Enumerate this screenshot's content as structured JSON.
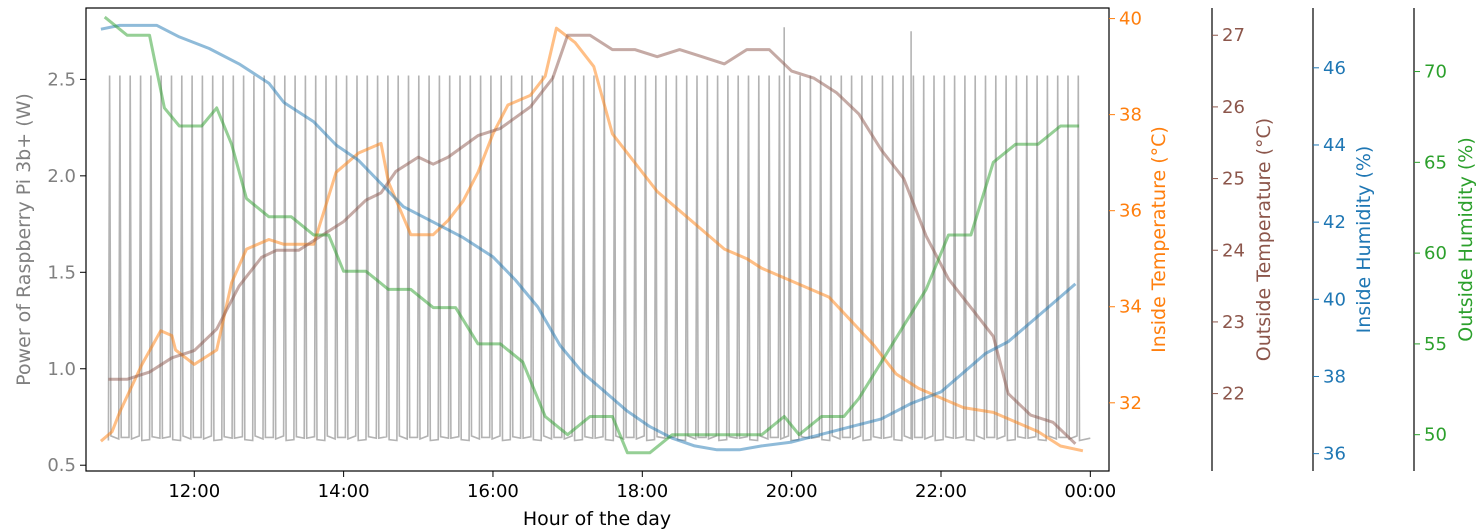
{
  "chart_data": {
    "type": "line",
    "xlabel": "Hour of the day",
    "x_ticks": [
      "12:00",
      "14:00",
      "16:00",
      "18:00",
      "20:00",
      "22:00",
      "00:00"
    ],
    "x_tick_hours": [
      12,
      14,
      16,
      18,
      20,
      22,
      24
    ],
    "xlim_hours": [
      10.55,
      24.25
    ],
    "grid": false,
    "legend": "none",
    "axes": [
      {
        "id": "power",
        "label": "Power of Raspberry Pi 3b+ (W)",
        "color": "#808080",
        "side": "left",
        "ylim": [
          0.47,
          2.87
        ],
        "ticks": [
          0.5,
          1.0,
          1.5,
          2.0,
          2.5
        ],
        "tick_labels": [
          "0.5",
          "1.0",
          "1.5",
          "2.0",
          "2.5"
        ]
      },
      {
        "id": "inside_temp",
        "label": "Inside Temperature (°C)",
        "color": "#ff7f0e",
        "side": "right",
        "ylim": [
          30.58,
          40.22
        ],
        "ticks": [
          32,
          34,
          36,
          38,
          40
        ],
        "tick_labels": [
          "32",
          "34",
          "36",
          "38",
          "40"
        ]
      },
      {
        "id": "outside_temp",
        "label": "Outside Temperature (°C)",
        "color": "#8c564b",
        "side": "right",
        "ylim": [
          20.92,
          27.38
        ],
        "ticks": [
          22,
          23,
          24,
          25,
          26,
          27
        ],
        "tick_labels": [
          "22",
          "23",
          "24",
          "25",
          "26",
          "27"
        ]
      },
      {
        "id": "inside_hum",
        "label": "Inside Humidity (%)",
        "color": "#1f77b4",
        "side": "right",
        "ylim": [
          35.55,
          47.55
        ],
        "ticks": [
          36,
          38,
          40,
          42,
          44,
          46
        ],
        "tick_labels": [
          "36",
          "38",
          "40",
          "42",
          "44",
          "46"
        ]
      },
      {
        "id": "outside_hum",
        "label": "Outside Humidity (%)",
        "color": "#2ca02c",
        "side": "right",
        "ylim": [
          48.0,
          73.5
        ],
        "ticks": [
          50,
          55,
          60,
          65,
          70
        ],
        "tick_labels": [
          "50",
          "55",
          "60",
          "65",
          "70"
        ]
      }
    ],
    "series": [
      {
        "name": "Power of Raspberry Pi 3b+ (W)",
        "axis": "power",
        "color": "#999999",
        "type": "pulses",
        "start_hour": 10.85,
        "end_hour": 23.9,
        "period_hours": 0.138,
        "baseline": 0.64,
        "peak": 2.52,
        "spikes": [
          {
            "hour": 19.9,
            "value": 2.77
          },
          {
            "hour": 21.6,
            "value": 2.75
          }
        ]
      },
      {
        "name": "Inside Temperature (°C)",
        "axis": "inside_temp",
        "color": "#ff7f0e",
        "x": [
          10.75,
          10.9,
          11.0,
          11.3,
          11.55,
          11.7,
          11.75,
          12.0,
          12.3,
          12.5,
          12.7,
          13.0,
          13.2,
          13.6,
          13.9,
          14.2,
          14.5,
          14.6,
          14.9,
          15.2,
          15.4,
          15.6,
          15.8,
          16.0,
          16.2,
          16.5,
          16.7,
          16.85,
          17.1,
          17.35,
          17.6,
          17.9,
          18.2,
          18.5,
          18.8,
          19.1,
          19.4,
          19.6,
          19.9,
          20.2,
          20.5,
          20.8,
          21.1,
          21.4,
          21.7,
          22.0,
          22.3,
          22.7,
          23.0,
          23.3,
          23.6,
          23.9
        ],
        "values": [
          31.2,
          31.4,
          31.8,
          32.8,
          33.5,
          33.4,
          33.1,
          32.8,
          33.1,
          34.5,
          35.2,
          35.4,
          35.3,
          35.3,
          36.8,
          37.2,
          37.4,
          36.6,
          35.5,
          35.5,
          35.8,
          36.2,
          36.8,
          37.6,
          38.2,
          38.4,
          38.8,
          39.8,
          39.5,
          39.0,
          37.6,
          37.0,
          36.4,
          36.0,
          35.6,
          35.2,
          35.0,
          34.8,
          34.6,
          34.4,
          34.2,
          33.7,
          33.2,
          32.6,
          32.3,
          32.1,
          31.9,
          31.8,
          31.6,
          31.4,
          31.1,
          31.0
        ]
      },
      {
        "name": "Outside Temperature (°C)",
        "axis": "outside_temp",
        "color": "#8c564b",
        "x": [
          10.85,
          11.1,
          11.4,
          11.7,
          12.0,
          12.3,
          12.6,
          12.9,
          13.1,
          13.4,
          13.7,
          14.0,
          14.3,
          14.5,
          14.7,
          15.0,
          15.2,
          15.4,
          15.8,
          16.1,
          16.5,
          16.8,
          17.0,
          17.3,
          17.6,
          17.9,
          18.2,
          18.5,
          18.8,
          19.1,
          19.4,
          19.7,
          20.0,
          20.3,
          20.6,
          20.9,
          21.2,
          21.5,
          21.8,
          22.1,
          22.4,
          22.7,
          22.9,
          23.2,
          23.5,
          23.8
        ],
        "values": [
          22.2,
          22.2,
          22.3,
          22.5,
          22.6,
          22.9,
          23.5,
          23.9,
          24.0,
          24.0,
          24.2,
          24.4,
          24.7,
          24.8,
          25.1,
          25.3,
          25.2,
          25.3,
          25.6,
          25.7,
          26.0,
          26.4,
          27.0,
          27.0,
          26.8,
          26.8,
          26.7,
          26.8,
          26.7,
          26.6,
          26.8,
          26.8,
          26.5,
          26.4,
          26.2,
          25.9,
          25.4,
          25.0,
          24.2,
          23.6,
          23.2,
          22.8,
          22.0,
          21.7,
          21.6,
          21.3
        ]
      },
      {
        "name": "Inside Humidity (%)",
        "axis": "inside_hum",
        "color": "#1f77b4",
        "x": [
          10.75,
          11.0,
          11.5,
          11.8,
          12.2,
          12.6,
          13.0,
          13.2,
          13.6,
          13.9,
          14.2,
          14.5,
          14.8,
          15.2,
          15.6,
          16.0,
          16.3,
          16.6,
          16.9,
          17.2,
          17.5,
          17.8,
          18.1,
          18.4,
          18.7,
          19.0,
          19.3,
          19.6,
          20.0,
          20.4,
          20.8,
          21.2,
          21.6,
          22.0,
          22.3,
          22.6,
          22.9,
          23.2,
          23.5,
          23.8
        ],
        "values": [
          47.0,
          47.1,
          47.1,
          46.8,
          46.5,
          46.1,
          45.6,
          45.1,
          44.6,
          44.0,
          43.6,
          43.0,
          42.4,
          42.0,
          41.6,
          41.1,
          40.5,
          39.8,
          38.8,
          38.1,
          37.6,
          37.1,
          36.7,
          36.4,
          36.2,
          36.1,
          36.1,
          36.2,
          36.3,
          36.5,
          36.7,
          36.9,
          37.3,
          37.6,
          38.1,
          38.6,
          38.9,
          39.4,
          39.9,
          40.4
        ]
      },
      {
        "name": "Outside Humidity (%)",
        "axis": "outside_hum",
        "color": "#2ca02c",
        "x": [
          10.8,
          11.1,
          11.4,
          11.6,
          11.8,
          12.1,
          12.3,
          12.5,
          12.7,
          13.0,
          13.3,
          13.6,
          13.8,
          14.0,
          14.3,
          14.6,
          14.9,
          15.2,
          15.5,
          15.8,
          16.1,
          16.4,
          16.7,
          17.0,
          17.3,
          17.6,
          17.8,
          18.1,
          18.4,
          18.7,
          19.0,
          19.3,
          19.6,
          19.9,
          20.1,
          20.4,
          20.7,
          20.9,
          21.2,
          21.5,
          21.8,
          22.1,
          22.4,
          22.7,
          23.0,
          23.3,
          23.6,
          23.85
        ],
        "values": [
          73.0,
          72.0,
          72.0,
          68.0,
          67.0,
          67.0,
          68.0,
          66.0,
          63.0,
          62.0,
          62.0,
          61.0,
          61.0,
          59.0,
          59.0,
          58.0,
          58.0,
          57.0,
          57.0,
          55.0,
          55.0,
          54.0,
          51.0,
          50.0,
          51.0,
          51.0,
          49.0,
          49.0,
          50.0,
          50.0,
          50.0,
          50.0,
          50.0,
          51.0,
          50.0,
          51.0,
          51.0,
          52.0,
          54.0,
          56.0,
          58.0,
          61.0,
          61.0,
          65.0,
          66.0,
          66.0,
          67.0,
          67.0
        ]
      }
    ]
  }
}
